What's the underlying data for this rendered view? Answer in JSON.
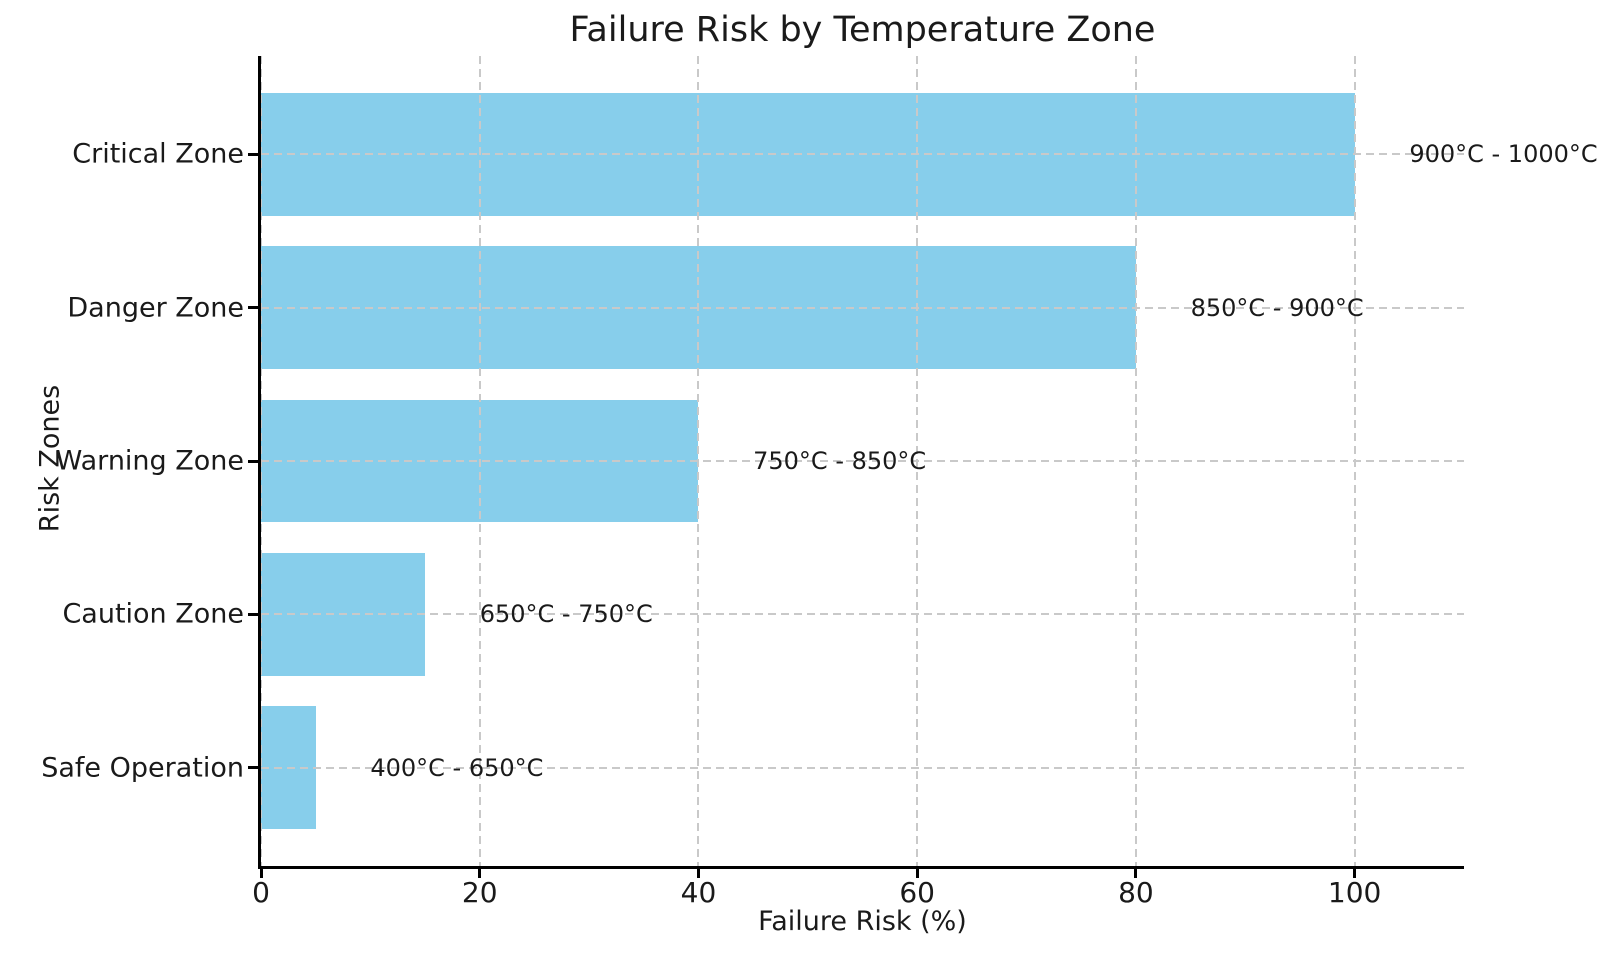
{
  "chart_data": {
    "type": "bar",
    "orientation": "horizontal",
    "title": "Failure Risk by Temperature Zone",
    "xlabel": "Failure Risk (%)",
    "ylabel": "Risk Zones",
    "categories": [
      "Critical Zone",
      "Danger Zone",
      "Warning Zone",
      "Caution Zone",
      "Safe Operation"
    ],
    "values": [
      100,
      80,
      40,
      15,
      5
    ],
    "annotations": [
      "900°C - 1000°C",
      "850°C - 900°C",
      "750°C - 850°C",
      "650°C - 750°C",
      "400°C - 650°C"
    ],
    "x_ticks": [
      0,
      20,
      40,
      60,
      80,
      100
    ],
    "xlim": [
      0,
      110
    ],
    "annotation_x_offset": 5,
    "bar_color": "#87CEEB",
    "grid": true,
    "grid_color": "#c9c9c9",
    "grid_style": "dashed",
    "legend": "none"
  }
}
